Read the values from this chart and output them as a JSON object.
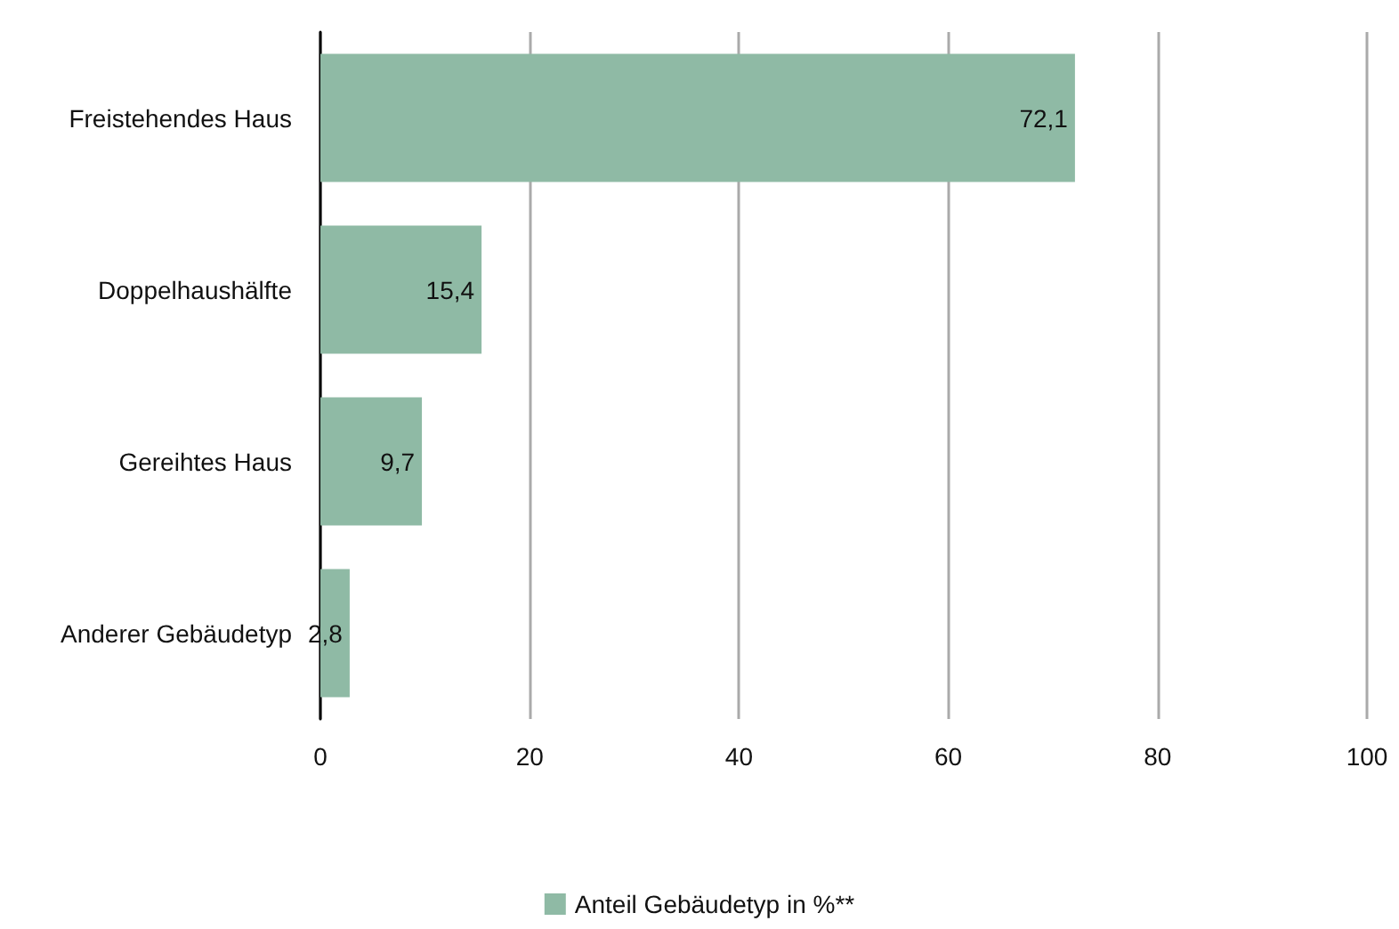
{
  "chart_data": {
    "type": "bar",
    "orientation": "horizontal",
    "categories": [
      "Freistehendes Haus",
      "Doppelhaushälfte",
      "Gereihtes Haus",
      "Anderer Gebäudetyp"
    ],
    "series": [
      {
        "name": "Anteil Gebäudetyp in %**",
        "color": "#8fbaa5",
        "values": [
          72.1,
          15.4,
          9.7,
          2.8
        ],
        "value_labels": [
          "72,1",
          "15,4",
          "9,7",
          "2,8"
        ]
      }
    ],
    "xlim": [
      0,
      100
    ],
    "xticks": [
      0,
      20,
      40,
      60,
      80,
      100
    ],
    "grid": "x",
    "legend": "bottom"
  }
}
